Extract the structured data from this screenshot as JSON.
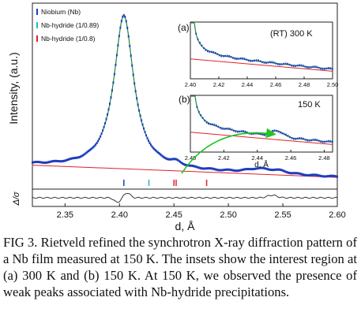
{
  "chart_data": [
    {
      "type": "line",
      "xlabel": "d, Å",
      "ylabel": "Intensity, (a.u.)",
      "residual_label": "Δ/σ",
      "xlim": [
        2.32,
        2.6
      ],
      "xticks": [
        "2.35",
        "2.40",
        "2.45",
        "2.50",
        "2.55",
        "2.60"
      ],
      "legend": [
        {
          "label": "Niobium (Nb)",
          "color": "#1f3fbf"
        },
        {
          "label": "Nb-hydride (1/0.89)",
          "color": "#22b8c8"
        },
        {
          "label": "Nb-hydride (1/0.8)",
          "color": "#e0202a"
        }
      ],
      "legend_position": "top-left",
      "peak": {
        "center": 2.404,
        "amplitude": 100,
        "width": 0.011
      },
      "background": {
        "start": 9.5,
        "end": 1.5
      },
      "weak_peaks": [
        {
          "center": 2.452,
          "amplitude": 2.2,
          "width": 0.006
        },
        {
          "center": 2.527,
          "amplitude": 2.5,
          "width": 0.012
        },
        {
          "center": 2.545,
          "amplitude": 2.0,
          "width": 0.012
        }
      ],
      "reflection_ticks": [
        {
          "series": "Niobium (Nb)",
          "positions": [
            2.404
          ],
          "color": "#1f3fbf"
        },
        {
          "series": "Nb-hydride (1/0.89)",
          "positions": [
            2.427
          ],
          "color": "#22b8c8"
        },
        {
          "series": "Nb-hydride (1/0.8)",
          "positions": [
            2.45,
            2.452,
            2.48
          ],
          "color": "#e0202a"
        }
      ],
      "colors": {
        "observed": "#1f3fbf",
        "calculated": "#1d8a3a",
        "background": "#e0202a",
        "residual": "#222222",
        "arrow": "#22c322"
      }
    },
    {
      "type": "line",
      "panel_label": "(a)",
      "annotation": "(RT) 300 K",
      "xlim": [
        2.4,
        2.5
      ],
      "xticks": [
        "2.40",
        "2.42",
        "2.44",
        "2.46",
        "2.48",
        "2.50"
      ]
    },
    {
      "type": "line",
      "panel_label": "(b)",
      "annotation": "150 K",
      "xlabel": "d, Å",
      "xlim": [
        2.4,
        2.485
      ],
      "xticks": [
        "2.40",
        "2.42",
        "2.44",
        "2.46",
        "2.48"
      ],
      "weak_peak": {
        "center": 2.452,
        "amplitude": 3.0
      }
    }
  ],
  "caption": "FIG 3. Rietveld refined the synchrotron X-ray diffraction pattern of a Nb film measured at 150 K. The insets show the interest region at (a) 300 K and (b) 150 K. At 150 K, we observed the presence of weak peaks associated with Nb-hydride precipitations."
}
